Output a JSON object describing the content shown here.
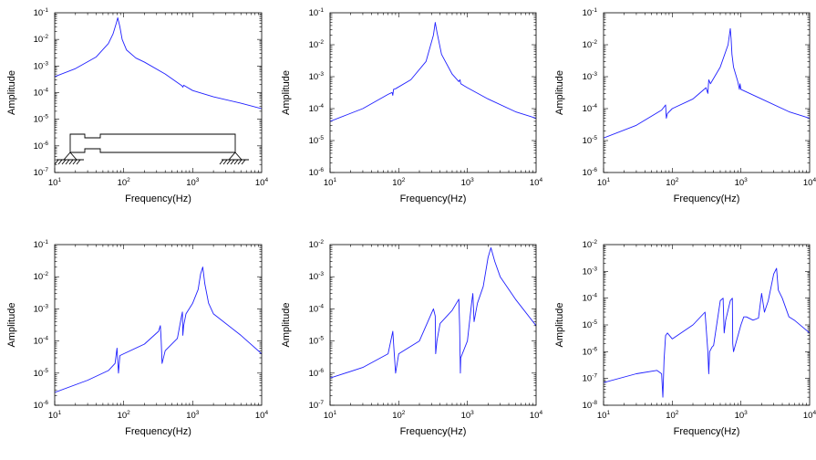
{
  "chart_data": [
    {
      "type": "line",
      "xlabel": "Frequency(Hz)",
      "ylabel": "Amplitude",
      "xscale": "log",
      "yscale": "log",
      "xlim": [
        10,
        10000
      ],
      "ylim": [
        1e-07,
        0.1
      ],
      "x_ticks": [
        {
          "base": "10",
          "exp": "1"
        },
        {
          "base": "10",
          "exp": "2"
        },
        {
          "base": "10",
          "exp": "3"
        },
        {
          "base": "10",
          "exp": "4"
        }
      ],
      "y_ticks": [
        {
          "base": "10",
          "exp": "-1"
        },
        {
          "base": "10",
          "exp": "-2"
        },
        {
          "base": "10",
          "exp": "-3"
        },
        {
          "base": "10",
          "exp": "-4"
        },
        {
          "base": "10",
          "exp": "-5"
        },
        {
          "base": "10",
          "exp": "-6"
        },
        {
          "base": "10",
          "exp": "-7"
        }
      ],
      "inset": "beam-schematic",
      "series": [
        {
          "x": [
            10,
            20,
            40,
            60,
            70,
            78,
            82,
            88,
            95,
            110,
            150,
            200,
            400,
            700,
            720,
            740,
            1000,
            2000,
            5000,
            10000
          ],
          "y": [
            0.0004,
            0.0008,
            0.0022,
            0.007,
            0.016,
            0.04,
            0.065,
            0.03,
            0.01,
            0.004,
            0.002,
            0.0014,
            0.0005,
            0.00018,
            0.00016,
            0.00019,
            0.00012,
            7e-05,
            4e-05,
            2.5e-05
          ]
        }
      ]
    },
    {
      "type": "line",
      "xlabel": "Frequency(Hz)",
      "ylabel": "Amplitude",
      "xscale": "log",
      "yscale": "log",
      "xlim": [
        10,
        10000
      ],
      "ylim": [
        1e-06,
        0.1
      ],
      "x_ticks": [
        {
          "base": "10",
          "exp": "1"
        },
        {
          "base": "10",
          "exp": "2"
        },
        {
          "base": "10",
          "exp": "3"
        },
        {
          "base": "10",
          "exp": "4"
        }
      ],
      "y_ticks": [
        {
          "base": "10",
          "exp": "-1"
        },
        {
          "base": "10",
          "exp": "-2"
        },
        {
          "base": "10",
          "exp": "-3"
        },
        {
          "base": "10",
          "exp": "-4"
        },
        {
          "base": "10",
          "exp": "-5"
        },
        {
          "base": "10",
          "exp": "-6"
        }
      ],
      "series": [
        {
          "x": [
            10,
            30,
            70,
            80,
            82,
            84,
            90,
            150,
            250,
            320,
            340,
            360,
            420,
            600,
            750,
            780,
            800,
            1000,
            2000,
            5000,
            10000
          ],
          "y": [
            4e-05,
            0.0001,
            0.00028,
            0.00032,
            0.00026,
            0.0004,
            0.00042,
            0.0008,
            0.003,
            0.02,
            0.05,
            0.025,
            0.005,
            0.0012,
            0.0007,
            0.0008,
            0.0006,
            0.00045,
            0.0002,
            8e-05,
            5e-05
          ]
        }
      ]
    },
    {
      "type": "line",
      "xlabel": "Frequency(Hz)",
      "ylabel": "Amplitude",
      "xscale": "log",
      "yscale": "log",
      "xlim": [
        10,
        10000
      ],
      "ylim": [
        1e-06,
        0.1
      ],
      "x_ticks": [
        {
          "base": "10",
          "exp": "1"
        },
        {
          "base": "10",
          "exp": "2"
        },
        {
          "base": "10",
          "exp": "3"
        },
        {
          "base": "10",
          "exp": "4"
        }
      ],
      "y_ticks": [
        {
          "base": "10",
          "exp": "-1"
        },
        {
          "base": "10",
          "exp": "-2"
        },
        {
          "base": "10",
          "exp": "-3"
        },
        {
          "base": "10",
          "exp": "-4"
        },
        {
          "base": "10",
          "exp": "-5"
        },
        {
          "base": "10",
          "exp": "-6"
        }
      ],
      "series": [
        {
          "x": [
            10,
            30,
            70,
            80,
            82,
            85,
            100,
            200,
            310,
            330,
            340,
            360,
            500,
            650,
            700,
            720,
            740,
            780,
            900,
            950,
            970,
            1000,
            2000,
            5000,
            10000
          ],
          "y": [
            1.2e-05,
            3e-05,
            9e-05,
            0.00013,
            5e-05,
            7e-05,
            0.0001,
            0.0002,
            0.00045,
            0.0003,
            0.0008,
            0.0006,
            0.002,
            0.01,
            0.032,
            0.015,
            0.005,
            0.002,
            0.0007,
            0.0004,
            0.0006,
            0.0004,
            0.0002,
            8e-05,
            5e-05
          ]
        }
      ]
    },
    {
      "type": "line",
      "xlabel": "Frequency(Hz)",
      "ylabel": "Amplitude",
      "xscale": "log",
      "yscale": "log",
      "xlim": [
        10,
        10000
      ],
      "ylim": [
        1e-06,
        0.1
      ],
      "x_ticks": [
        {
          "base": "10",
          "exp": "1"
        },
        {
          "base": "10",
          "exp": "2"
        },
        {
          "base": "10",
          "exp": "3"
        },
        {
          "base": "10",
          "exp": "4"
        }
      ],
      "y_ticks": [
        {
          "base": "10",
          "exp": "-1"
        },
        {
          "base": "10",
          "exp": "-2"
        },
        {
          "base": "10",
          "exp": "-3"
        },
        {
          "base": "10",
          "exp": "-4"
        },
        {
          "base": "10",
          "exp": "-5"
        },
        {
          "base": "10",
          "exp": "-6"
        }
      ],
      "series": [
        {
          "x": [
            10,
            30,
            60,
            75,
            80,
            84,
            88,
            100,
            200,
            320,
            340,
            350,
            360,
            400,
            600,
            690,
            710,
            720,
            740,
            800,
            1000,
            1200,
            1300,
            1400,
            1500,
            1700,
            2000,
            5000,
            10000
          ],
          "y": [
            2.5e-06,
            6e-06,
            1.2e-05,
            2e-05,
            6e-05,
            1e-05,
            3.5e-05,
            4e-05,
            8e-05,
            0.0002,
            0.0003,
            0.0001,
            2e-05,
            5e-05,
            0.00012,
            0.0006,
            0.0008,
            0.00015,
            0.0003,
            0.0007,
            0.0015,
            0.004,
            0.012,
            0.02,
            0.006,
            0.0015,
            0.0007,
            0.00015,
            4e-05
          ]
        }
      ]
    },
    {
      "type": "line",
      "xlabel": "Frequency(Hz)",
      "ylabel": "Amplitude",
      "xscale": "log",
      "yscale": "log",
      "xlim": [
        10,
        10000
      ],
      "ylim": [
        1e-07,
        0.01
      ],
      "x_ticks": [
        {
          "base": "10",
          "exp": "1"
        },
        {
          "base": "10",
          "exp": "2"
        },
        {
          "base": "10",
          "exp": "3"
        },
        {
          "base": "10",
          "exp": "4"
        }
      ],
      "y_ticks": [
        {
          "base": "10",
          "exp": "-2"
        },
        {
          "base": "10",
          "exp": "-3"
        },
        {
          "base": "10",
          "exp": "-4"
        },
        {
          "base": "10",
          "exp": "-5"
        },
        {
          "base": "10",
          "exp": "-6"
        },
        {
          "base": "10",
          "exp": "-7"
        }
      ],
      "series": [
        {
          "x": [
            10,
            30,
            70,
            82,
            85,
            90,
            100,
            200,
            320,
            340,
            345,
            360,
            400,
            600,
            750,
            770,
            790,
            800,
            1000,
            1150,
            1200,
            1250,
            1400,
            1700,
            2000,
            2200,
            2500,
            3000,
            5000,
            10000
          ],
          "y": [
            7e-07,
            1.5e-06,
            4e-06,
            2e-05,
            6e-06,
            1e-06,
            4e-06,
            1e-05,
            0.0001,
            6e-05,
            4e-06,
            1e-05,
            3.5e-05,
            9e-05,
            0.0002,
            3e-05,
            1e-06,
            3e-06,
            1e-05,
            0.00015,
            0.0003,
            4e-05,
            0.00015,
            0.0005,
            0.004,
            0.008,
            0.003,
            0.001,
            0.0002,
            3e-05
          ]
        }
      ]
    },
    {
      "type": "line",
      "xlabel": "Frequency(Hz)",
      "ylabel": "Amplitude",
      "xscale": "log",
      "yscale": "log",
      "xlim": [
        10,
        10000
      ],
      "ylim": [
        1e-08,
        0.01
      ],
      "x_ticks": [
        {
          "base": "10",
          "exp": "1"
        },
        {
          "base": "10",
          "exp": "2"
        },
        {
          "base": "10",
          "exp": "3"
        },
        {
          "base": "10",
          "exp": "4"
        }
      ],
      "y_ticks": [
        {
          "base": "10",
          "exp": "-2"
        },
        {
          "base": "10",
          "exp": "-3"
        },
        {
          "base": "10",
          "exp": "-4"
        },
        {
          "base": "10",
          "exp": "-5"
        },
        {
          "base": "10",
          "exp": "-6"
        },
        {
          "base": "10",
          "exp": "-7"
        },
        {
          "base": "10",
          "exp": "-8"
        }
      ],
      "series": [
        {
          "x": [
            10,
            30,
            60,
            70,
            73,
            76,
            80,
            85,
            100,
            200,
            300,
            330,
            340,
            350,
            380,
            400,
            500,
            550,
            570,
            600,
            700,
            750,
            760,
            780,
            1000,
            1100,
            1200,
            1500,
            1800,
            2000,
            2200,
            2500,
            3000,
            3300,
            3500,
            4000,
            5000,
            6000,
            10000
          ],
          "y": [
            7e-08,
            1.5e-07,
            2e-07,
            1.5e-07,
            2e-08,
            5e-07,
            4e-06,
            5e-06,
            3e-06,
            1e-05,
            3e-05,
            1e-06,
            1.5e-07,
            1e-06,
            1.5e-06,
            1.7e-06,
            8e-05,
            0.0001,
            5e-06,
            1.5e-05,
            8e-05,
            0.0001,
            2e-06,
            1e-06,
            1e-05,
            2e-05,
            2e-05,
            1.5e-05,
            1.8e-05,
            0.00015,
            3e-05,
            8e-05,
            0.0008,
            0.0013,
            0.0002,
            0.0001,
            2e-05,
            1.5e-05,
            5e-06
          ]
        }
      ]
    }
  ]
}
